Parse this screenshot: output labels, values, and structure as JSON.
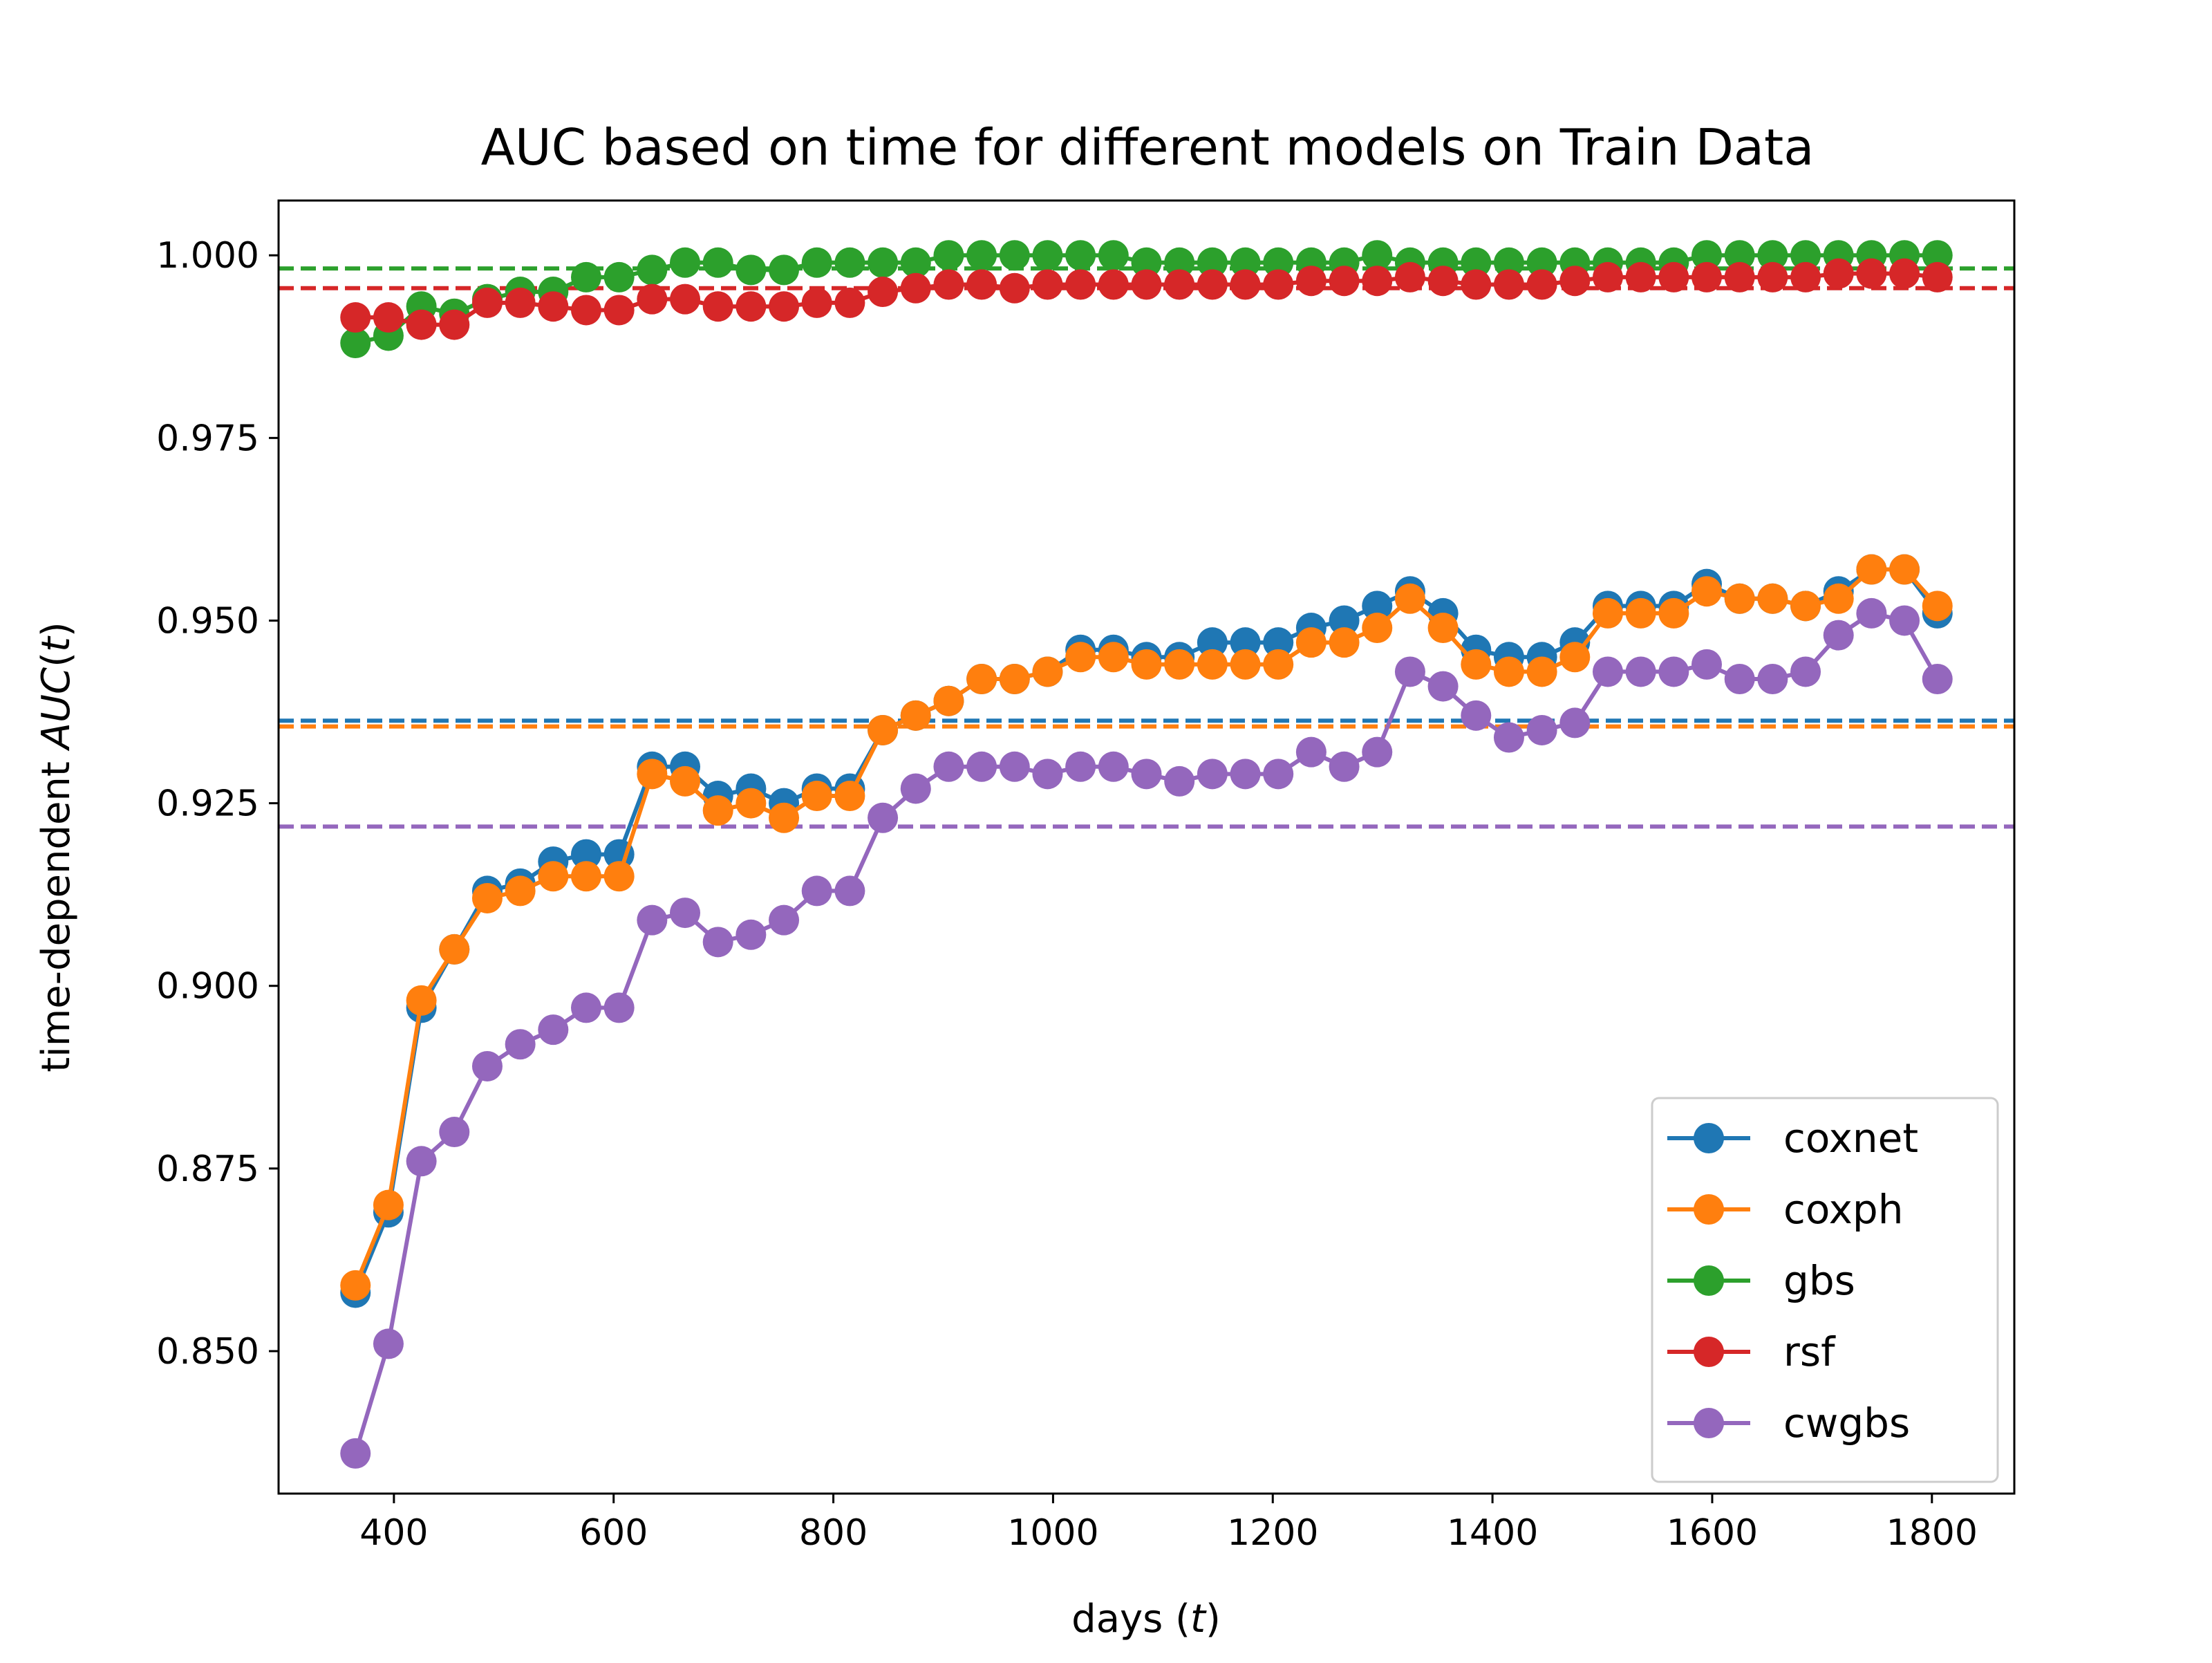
{
  "chart_data": {
    "type": "line",
    "title": "AUC based on time for different models on Train Data",
    "xlabel": "days (t)",
    "ylabel": "time-dependent AUC(t)",
    "xlim": [
      295,
      1875
    ],
    "ylim": [
      0.8305,
      1.0075
    ],
    "xticks": [
      400,
      600,
      800,
      1000,
      1200,
      1400,
      1600,
      1800
    ],
    "yticks": [
      0.85,
      0.875,
      0.9,
      0.925,
      0.95,
      0.975,
      1.0
    ],
    "ytick_labels": [
      "0.850",
      "0.875",
      "0.900",
      "0.925",
      "0.950",
      "0.975",
      "1.000"
    ],
    "grid": false,
    "legend_position": "lower right",
    "x": [
      365,
      395,
      425,
      455,
      485,
      515,
      545,
      575,
      605,
      635,
      665,
      695,
      725,
      755,
      785,
      815,
      845,
      875,
      905,
      935,
      965,
      995,
      1025,
      1055,
      1085,
      1115,
      1145,
      1175,
      1205,
      1235,
      1265,
      1295,
      1325,
      1355,
      1385,
      1415,
      1445,
      1475,
      1505,
      1535,
      1565,
      1595,
      1625,
      1655,
      1685,
      1715,
      1745,
      1775,
      1805
    ],
    "series": [
      {
        "name": "coxnet",
        "color": "#1f77b4",
        "mean": 0.9363,
        "values": [
          0.858,
          0.869,
          0.897,
          0.905,
          0.913,
          0.914,
          0.917,
          0.918,
          0.918,
          0.93,
          0.93,
          0.926,
          0.927,
          0.925,
          0.927,
          0.927,
          0.935,
          0.937,
          0.939,
          0.942,
          0.942,
          0.943,
          0.946,
          0.946,
          0.945,
          0.945,
          0.947,
          0.947,
          0.947,
          0.949,
          0.95,
          0.952,
          0.954,
          0.951,
          0.946,
          0.945,
          0.945,
          0.947,
          0.952,
          0.952,
          0.952,
          0.955,
          0.953,
          0.953,
          0.952,
          0.954,
          0.957,
          0.957,
          0.951
        ]
      },
      {
        "name": "coxph",
        "color": "#ff7f0e",
        "mean": 0.9355,
        "values": [
          0.859,
          0.87,
          0.898,
          0.905,
          0.912,
          0.913,
          0.915,
          0.915,
          0.915,
          0.929,
          0.928,
          0.924,
          0.925,
          0.923,
          0.926,
          0.926,
          0.935,
          0.937,
          0.939,
          0.942,
          0.942,
          0.943,
          0.945,
          0.945,
          0.944,
          0.944,
          0.944,
          0.944,
          0.944,
          0.947,
          0.947,
          0.949,
          0.953,
          0.949,
          0.944,
          0.943,
          0.943,
          0.945,
          0.951,
          0.951,
          0.951,
          0.954,
          0.953,
          0.953,
          0.952,
          0.953,
          0.957,
          0.957,
          0.952
        ]
      },
      {
        "name": "gbs",
        "color": "#2ca02c",
        "mean": 0.9982,
        "values": [
          0.988,
          0.989,
          0.993,
          0.992,
          0.994,
          0.995,
          0.995,
          0.997,
          0.997,
          0.998,
          0.999,
          0.999,
          0.998,
          0.998,
          0.999,
          0.999,
          0.999,
          0.999,
          1.0,
          1.0,
          1.0,
          1.0,
          1.0,
          1.0,
          0.999,
          0.999,
          0.999,
          0.999,
          0.999,
          0.999,
          0.999,
          1.0,
          0.999,
          0.999,
          0.999,
          0.999,
          0.999,
          0.999,
          0.999,
          0.999,
          0.999,
          1.0,
          1.0,
          1.0,
          1.0,
          1.0,
          1.0,
          1.0,
          1.0
        ]
      },
      {
        "name": "rsf",
        "color": "#d62728",
        "mean": 0.9955,
        "values": [
          0.9915,
          0.9915,
          0.9905,
          0.9905,
          0.9935,
          0.9935,
          0.993,
          0.9925,
          0.9925,
          0.994,
          0.994,
          0.993,
          0.993,
          0.993,
          0.9935,
          0.9935,
          0.995,
          0.9955,
          0.996,
          0.996,
          0.9955,
          0.996,
          0.996,
          0.996,
          0.996,
          0.996,
          0.996,
          0.996,
          0.996,
          0.9965,
          0.9965,
          0.9965,
          0.997,
          0.9965,
          0.996,
          0.996,
          0.996,
          0.9965,
          0.997,
          0.997,
          0.997,
          0.997,
          0.997,
          0.997,
          0.997,
          0.9975,
          0.9975,
          0.9975,
          0.997
        ]
      },
      {
        "name": "cwgbs",
        "color": "#9467bd",
        "mean": 0.9218,
        "values": [
          0.836,
          0.851,
          0.876,
          0.88,
          0.889,
          0.892,
          0.894,
          0.897,
          0.897,
          0.909,
          0.91,
          0.906,
          0.907,
          0.909,
          0.913,
          0.913,
          0.923,
          0.927,
          0.93,
          0.93,
          0.93,
          0.929,
          0.93,
          0.93,
          0.929,
          0.928,
          0.929,
          0.929,
          0.929,
          0.932,
          0.93,
          0.932,
          0.943,
          0.941,
          0.937,
          0.934,
          0.935,
          0.936,
          0.943,
          0.943,
          0.943,
          0.944,
          0.942,
          0.942,
          0.943,
          0.948,
          0.951,
          0.95,
          0.942
        ]
      }
    ]
  }
}
